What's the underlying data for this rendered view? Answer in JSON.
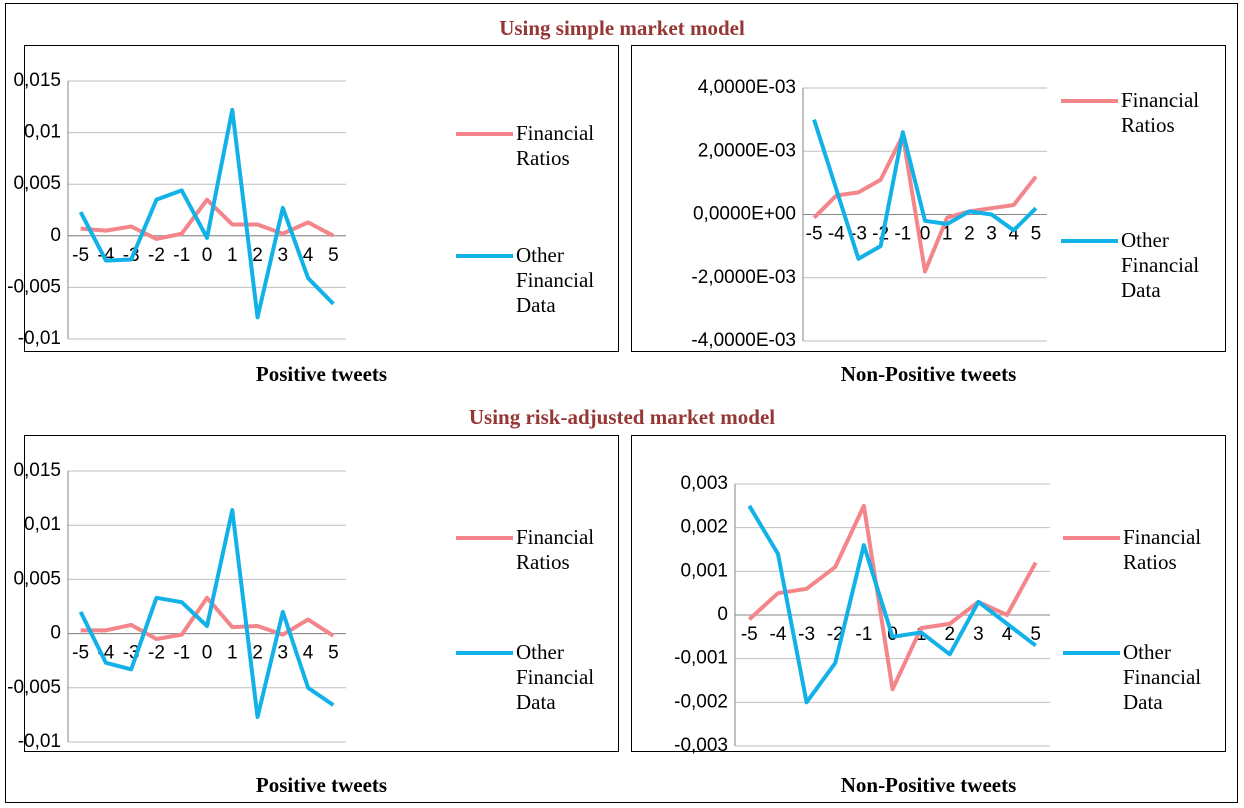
{
  "sections": [
    "Using simple market model",
    "Using risk-adjusted market model"
  ],
  "chart_data": [
    {
      "type": "line",
      "xlabel": "Positive tweets",
      "categories": [
        "-5",
        "-4",
        "-3",
        "-2",
        "-1",
        "0",
        "1",
        "2",
        "3",
        "4",
        "5"
      ],
      "ylim": [
        -0.01,
        0.015
      ],
      "yticks": [
        {
          "value": -0.01,
          "label": "-0,01"
        },
        {
          "value": -0.005,
          "label": "-0,005"
        },
        0,
        {
          "value": 0.005,
          "label": "0,005"
        },
        {
          "value": 0.01,
          "label": "0,01"
        },
        {
          "value": 0.015,
          "label": "0,015"
        }
      ],
      "grid": true,
      "series": [
        {
          "name": "Financial Ratios",
          "color": "#f4858a",
          "values": [
            0.0007,
            0.0005,
            0.0009,
            -0.0003,
            0.0002,
            0.0035,
            0.0011,
            0.0011,
            0.0002,
            0.0013,
            0.0
          ]
        },
        {
          "name": "Other Financial Data",
          "color": "#12b2e8",
          "values": [
            0.0023,
            -0.0024,
            -0.0023,
            0.0035,
            0.0044,
            -0.0002,
            0.0122,
            -0.0079,
            0.0027,
            -0.0041,
            -0.0066
          ]
        }
      ]
    },
    {
      "type": "line",
      "xlabel": "Non-Positive tweets",
      "categories": [
        "-5",
        "-4",
        "-3",
        "-2",
        "-1",
        "0",
        "1",
        "2",
        "3",
        "4",
        "5"
      ],
      "ylim": [
        -0.004,
        0.004
      ],
      "yticks": [
        {
          "value": -0.004,
          "label": "-4,0000E-03"
        },
        {
          "value": -0.002,
          "label": "-2,0000E-03"
        },
        {
          "value": 0,
          "label": "0,0000E+00"
        },
        {
          "value": 0.002,
          "label": "2,0000E-03"
        },
        {
          "value": 0.004,
          "label": "4,0000E-03"
        }
      ],
      "grid": true,
      "series": [
        {
          "name": "Financial Ratios",
          "color": "#f4858a",
          "values": [
            -0.0001,
            0.0006,
            0.0007,
            0.0011,
            0.0025,
            -0.0018,
            -0.0001,
            0.0001,
            0.0002,
            0.0003,
            0.0012
          ]
        },
        {
          "name": "Other Financial Data",
          "color": "#12b2e8",
          "values": [
            0.003,
            0.0008,
            -0.0014,
            -0.001,
            0.0026,
            -0.0002,
            -0.0003,
            0.0001,
            0.0,
            -0.0005,
            0.0002
          ]
        }
      ]
    },
    {
      "type": "line",
      "xlabel": "Positive tweets",
      "categories": [
        "-5",
        "-4",
        "-3",
        "-2",
        "-1",
        "0",
        "1",
        "2",
        "3",
        "4",
        "5"
      ],
      "ylim": [
        -0.01,
        0.015
      ],
      "yticks": [
        {
          "value": -0.01,
          "label": "-0,01"
        },
        {
          "value": -0.005,
          "label": "-0,005"
        },
        0,
        {
          "value": 0.005,
          "label": "0,005"
        },
        {
          "value": 0.01,
          "label": "0,01"
        },
        {
          "value": 0.015,
          "label": "0,015"
        }
      ],
      "grid": true,
      "series": [
        {
          "name": "Financial Ratios",
          "color": "#f4858a",
          "values": [
            0.0003,
            0.0003,
            0.0008,
            -0.0005,
            -0.0001,
            0.0033,
            0.0006,
            0.0007,
            -0.0001,
            0.0013,
            -0.0002
          ]
        },
        {
          "name": "Other Financial Data",
          "color": "#12b2e8",
          "values": [
            0.002,
            -0.0027,
            -0.0033,
            0.0033,
            0.0029,
            0.0007,
            0.0114,
            -0.0077,
            0.002,
            -0.005,
            -0.0066
          ]
        }
      ]
    },
    {
      "type": "line",
      "xlabel": "Non-Positive tweets",
      "categories": [
        "-5",
        "-4",
        "-3",
        "-2",
        "-1",
        "0",
        "1",
        "2",
        "3",
        "4",
        "5"
      ],
      "ylim": [
        -0.003,
        0.003
      ],
      "yticks": [
        {
          "value": -0.003,
          "label": "-0,003"
        },
        {
          "value": -0.002,
          "label": "-0,002"
        },
        {
          "value": -0.001,
          "label": "-0,001"
        },
        0,
        {
          "value": 0.001,
          "label": "0,001"
        },
        {
          "value": 0.002,
          "label": "0,002"
        },
        {
          "value": 0.003,
          "label": "0,003"
        }
      ],
      "grid": true,
      "series": [
        {
          "name": "Financial Ratios",
          "color": "#f4858a",
          "values": [
            -0.0001,
            0.0005,
            0.0006,
            0.0011,
            0.0025,
            -0.0017,
            -0.0003,
            -0.0002,
            0.0003,
            0.0,
            0.0012
          ]
        },
        {
          "name": "Other Financial Data",
          "color": "#12b2e8",
          "values": [
            0.0025,
            0.0014,
            -0.002,
            -0.0011,
            0.0016,
            -0.0005,
            -0.0004,
            -0.0009,
            0.0003,
            -0.0002,
            -0.0007
          ]
        }
      ]
    }
  ]
}
